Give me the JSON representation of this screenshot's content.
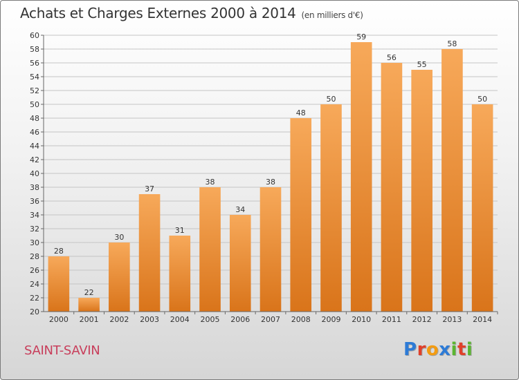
{
  "title": "Achats et Charges Externes 2000 à 2014",
  "subtitle": "(en milliers d'€)",
  "commune": "SAINT-SAVIN",
  "logo": {
    "text": "Proxiti",
    "letters": [
      {
        "ch": "P",
        "color": "#2d7bd6"
      },
      {
        "ch": "r",
        "color": "#e0402a"
      },
      {
        "ch": "o",
        "color": "#f39c12"
      },
      {
        "ch": "x",
        "color": "#2d7bd6"
      },
      {
        "ch": "i",
        "color": "#5bb531"
      },
      {
        "ch": "t",
        "color": "#e0402a"
      },
      {
        "ch": "i",
        "color": "#5bb531"
      }
    ]
  },
  "colors": {
    "bar_top": "#f7a95a",
    "bar_bottom": "#d9741a",
    "commune": "#c83e5b"
  },
  "chart_data": {
    "type": "bar",
    "title": "Achats et Charges Externes 2000 à 2014",
    "subtitle": "(en milliers d'€)",
    "categories": [
      "2000",
      "2001",
      "2002",
      "2003",
      "2004",
      "2005",
      "2006",
      "2007",
      "2008",
      "2009",
      "2010",
      "2011",
      "2012",
      "2013",
      "2014"
    ],
    "values": [
      28,
      22,
      30,
      37,
      31,
      38,
      34,
      38,
      48,
      50,
      59,
      56,
      55,
      58,
      50
    ],
    "ylim": [
      20,
      60
    ],
    "yticks": [
      20,
      22,
      24,
      26,
      28,
      30,
      32,
      34,
      36,
      38,
      40,
      42,
      44,
      46,
      48,
      50,
      52,
      54,
      56,
      58,
      60
    ],
    "grid": true,
    "data_labels": true
  }
}
